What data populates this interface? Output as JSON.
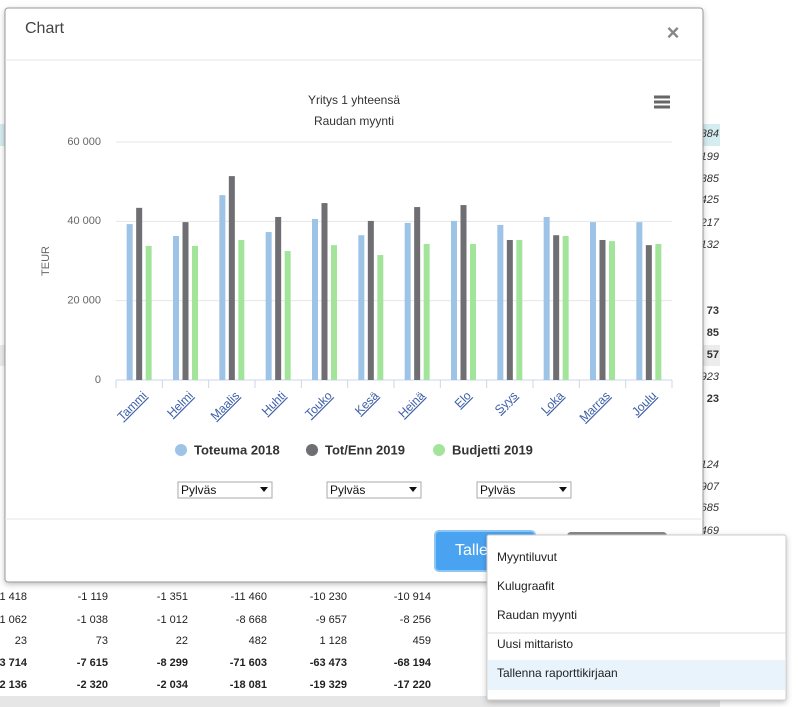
{
  "modal": {
    "title": "Chart",
    "close": "×"
  },
  "chart_data": {
    "type": "bar",
    "title": "Yritys 1 yhteensä",
    "subtitle": "Raudan myynti",
    "y_label": "TEUR",
    "categories": [
      "Tammi",
      "Helmi",
      "Maalis",
      "Huhti",
      "Touko",
      "Kesä",
      "Heinä",
      "Elo",
      "Syys",
      "Loka",
      "Marras",
      "Joulu"
    ],
    "series": [
      {
        "name": "Toteuma 2018",
        "color": "#9dc3e6",
        "values": [
          39300,
          36300,
          46600,
          37300,
          40600,
          36500,
          39600,
          40100,
          39100,
          41100,
          39800,
          39800
        ]
      },
      {
        "name": "Tot/Enn 2019",
        "color": "#6e6e73",
        "values": [
          43400,
          39800,
          51400,
          41100,
          44600,
          40100,
          43600,
          44100,
          35300,
          36500,
          35300,
          34000
        ]
      },
      {
        "name": "Budjetti 2019",
        "color": "#a3e49b",
        "values": [
          33800,
          33800,
          35300,
          32500,
          34000,
          31500,
          34300,
          34300,
          35300,
          36300,
          35000,
          34300
        ]
      }
    ],
    "ylim": [
      0,
      60000
    ],
    "yticks": [
      0,
      {
        "value": 20000,
        "label": "20 000"
      },
      {
        "value": 40000,
        "label": "40 000"
      },
      {
        "value": 60000,
        "label": "60 000"
      }
    ],
    "grid": true,
    "legend": "bottom"
  },
  "series_selectors": [
    "Pylväs",
    "Pylväs",
    "Pylväs"
  ],
  "buttons": {
    "save": "Tallenna"
  },
  "menu": {
    "items": [
      "Myyntiluvut",
      "Kulugraafit",
      "Raudan myynti",
      "Uusi mittaristo",
      "Tallenna raporttikirjaan"
    ],
    "highlighted": 4
  },
  "background": {
    "right_column": [
      "384",
      "199",
      "385",
      "425",
      "217",
      "132",
      "73",
      "85",
      "57",
      "923",
      "23",
      "124",
      "907",
      "685",
      "469"
    ],
    "rows": [
      {
        "cells": [
          "1 418",
          "-1 119",
          "-1 351",
          "-11 460",
          "-10 230",
          "-10 914"
        ],
        "bold": false
      },
      {
        "cells": [
          "1 062",
          "-1 038",
          "-1 012",
          "-8 668",
          "-9 657",
          "-8 256"
        ],
        "bold": false
      },
      {
        "cells": [
          "23",
          "73",
          "22",
          "482",
          "1 128",
          "459"
        ],
        "bold": false
      },
      {
        "cells": [
          "3 714",
          "-7 615",
          "-8 299",
          "-71 603",
          "-63 473",
          "-68 194"
        ],
        "bold": true
      },
      {
        "cells": [
          "2 136",
          "-2 320",
          "-2 034",
          "-18 081",
          "-19 329",
          "-17 220"
        ],
        "bold": true
      }
    ]
  }
}
